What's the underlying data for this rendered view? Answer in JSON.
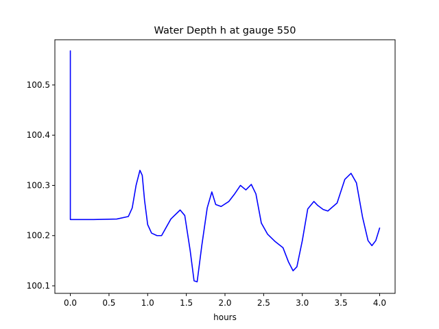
{
  "chart_data": {
    "type": "line",
    "title": "Water Depth h at gauge 550",
    "xlabel": "hours",
    "ylabel": "",
    "xlim": [
      -0.2,
      4.2
    ],
    "ylim": [
      100.085,
      100.59
    ],
    "x_ticks": [
      0.0,
      0.5,
      1.0,
      1.5,
      2.0,
      2.5,
      3.0,
      3.5,
      4.0
    ],
    "x_tick_labels": [
      "0.0",
      "0.5",
      "1.0",
      "1.5",
      "2.0",
      "2.5",
      "3.0",
      "3.5",
      "4.0"
    ],
    "y_ticks": [
      100.1,
      100.2,
      100.3,
      100.4,
      100.5
    ],
    "y_tick_labels": [
      "100.1",
      "100.2",
      "100.3",
      "100.4",
      "100.5"
    ],
    "grid": false,
    "legend": "none",
    "series": [
      {
        "color": "#0000ff",
        "x": [
          0.0,
          0.0,
          0.0,
          0.3,
          0.6,
          0.75,
          0.8,
          0.85,
          0.9,
          0.93,
          0.96,
          1.0,
          1.05,
          1.12,
          1.18,
          1.3,
          1.42,
          1.48,
          1.55,
          1.6,
          1.64,
          1.7,
          1.77,
          1.83,
          1.88,
          1.95,
          2.05,
          2.12,
          2.2,
          2.27,
          2.34,
          2.4,
          2.47,
          2.55,
          2.65,
          2.75,
          2.82,
          2.88,
          2.93,
          3.0,
          3.07,
          3.15,
          3.2,
          3.27,
          3.33,
          3.45,
          3.55,
          3.63,
          3.7,
          3.78,
          3.85,
          3.9,
          3.95,
          4.0
        ],
        "y": [
          100.568,
          100.232,
          100.232,
          100.232,
          100.233,
          100.238,
          100.255,
          100.3,
          100.33,
          100.32,
          100.27,
          100.222,
          100.205,
          100.2,
          100.2,
          100.233,
          100.251,
          100.24,
          100.17,
          100.11,
          100.108,
          100.18,
          100.255,
          100.287,
          100.262,
          100.258,
          100.268,
          100.282,
          100.3,
          100.291,
          100.302,
          100.283,
          100.225,
          100.203,
          100.188,
          100.176,
          100.148,
          100.13,
          100.138,
          100.19,
          100.253,
          100.268,
          100.26,
          100.252,
          100.249,
          100.265,
          100.312,
          100.324,
          100.305,
          100.236,
          100.19,
          100.18,
          100.19,
          100.215
        ]
      }
    ]
  }
}
